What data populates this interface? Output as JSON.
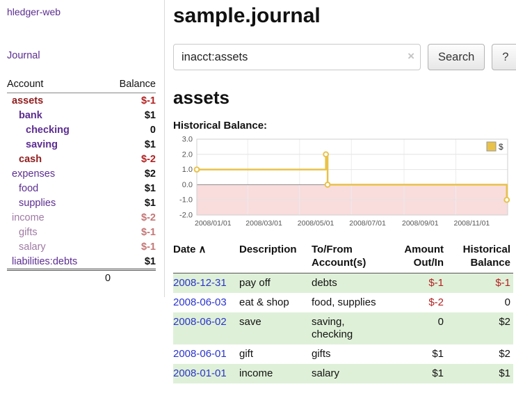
{
  "colors": {
    "link_purple": "#5c2d91",
    "negative_red": "#b22222",
    "faded_negative_red": "#c47777",
    "row_green": "#dff0d8",
    "date_link_blue": "#2a35cc",
    "chart_line_gold": "#e8c24a",
    "chart_negative_fill": "#f9dcdc"
  },
  "app": {
    "title": "hledger-web",
    "nav_journal": "Journal"
  },
  "sidebar": {
    "col_account": "Account",
    "col_balance": "Balance",
    "accounts": [
      {
        "name": "assets",
        "balance": "$-1"
      },
      {
        "name": "bank",
        "balance": "$1"
      },
      {
        "name": "checking",
        "balance": "0"
      },
      {
        "name": "saving",
        "balance": "$1"
      },
      {
        "name": "cash",
        "balance": "$-2"
      },
      {
        "name": "expenses",
        "balance": "$2"
      },
      {
        "name": "food",
        "balance": "$1"
      },
      {
        "name": "supplies",
        "balance": "$1"
      },
      {
        "name": "income",
        "balance": "$-2"
      },
      {
        "name": "gifts",
        "balance": "$-1"
      },
      {
        "name": "salary",
        "balance": "$-1"
      },
      {
        "name": "liabilities:debts",
        "balance": "$1"
      }
    ],
    "total": "0"
  },
  "page": {
    "title": "sample.journal",
    "account_heading": "assets",
    "chart_label": "Historical Balance:"
  },
  "search": {
    "value": "inacct:assets",
    "clear_icon": "×",
    "button_label": "Search",
    "help_label": "?"
  },
  "chart_data": {
    "type": "line",
    "style": "step-after",
    "title": "Historical Balance",
    "xlim": [
      "2008-01-01",
      "2009-01-01"
    ],
    "ylim": [
      -2.0,
      3.0
    ],
    "y_ticks": [
      3.0,
      2.0,
      1.0,
      0.0,
      -1.0,
      -2.0
    ],
    "x_tick_dates": [
      "2008-01-01",
      "2008-03-01",
      "2008-05-01",
      "2008-07-01",
      "2008-09-01",
      "2008-11-01"
    ],
    "x_tick_labels": [
      "2008/01/01",
      "2008/03/01",
      "2008/05/01",
      "2008/07/01",
      "2008/09/01",
      "2008/11/01"
    ],
    "grid": true,
    "legend_position": "top-right",
    "legend": [
      {
        "label": "$",
        "color": "#e8c24a"
      }
    ],
    "negative_region_fill": "#f9dcdc",
    "series": [
      {
        "name": "$",
        "color": "#e8c24a",
        "points": [
          {
            "date": "2008-01-01",
            "value": 1
          },
          {
            "date": "2008-06-01",
            "value": 2
          },
          {
            "date": "2008-06-03",
            "value": 0
          },
          {
            "date": "2008-12-31",
            "value": -1
          }
        ]
      }
    ]
  },
  "register": {
    "columns": {
      "date": "Date",
      "sort_indicator": "∧",
      "description": "Description",
      "account_line1": "To/From",
      "account_line2": "Account(s)",
      "amount_line1": "Amount",
      "amount_line2": "Out/In",
      "balance_line1": "Historical",
      "balance_line2": "Balance"
    },
    "rows": [
      {
        "date": "2008-12-31",
        "description": "pay off",
        "accounts": "debts",
        "amount": "$-1",
        "balance": "$-1"
      },
      {
        "date": "2008-06-03",
        "description": "eat & shop",
        "accounts": "food, supplies",
        "amount": "$-2",
        "balance": "0"
      },
      {
        "date": "2008-06-02",
        "description": "save",
        "accounts": "saving,\nchecking",
        "amount": "0",
        "balance": "$2"
      },
      {
        "date": "2008-06-01",
        "description": "gift",
        "accounts": "gifts",
        "amount": "$1",
        "balance": "$2"
      },
      {
        "date": "2008-01-01",
        "description": "income",
        "accounts": "salary",
        "amount": "$1",
        "balance": "$1"
      }
    ]
  }
}
